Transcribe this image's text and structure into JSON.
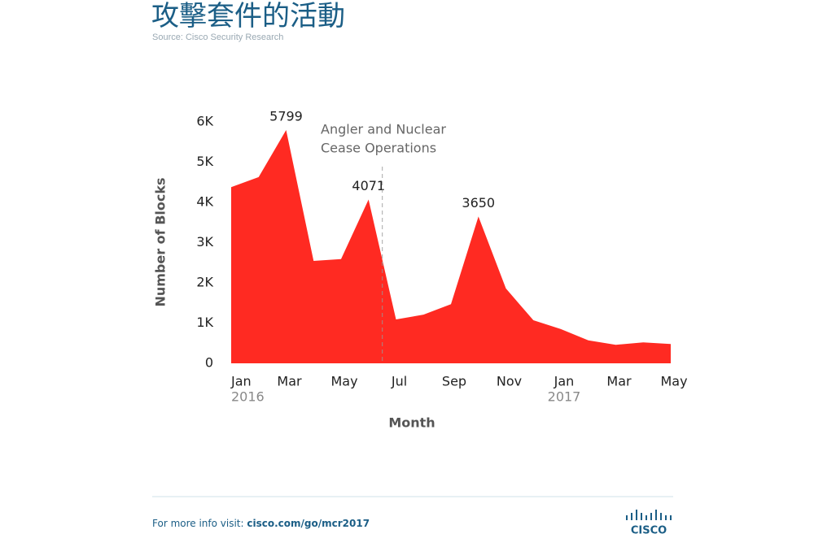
{
  "header": {
    "title": "攻擊套件的活動",
    "source": "Source: Cisco Security Research"
  },
  "chart_data": {
    "type": "area",
    "color": "#ff2a22",
    "categories": [
      "Jan",
      null,
      "Mar",
      null,
      "May",
      null,
      "Jul",
      null,
      "Sep",
      null,
      "Nov",
      null,
      "Jan",
      null,
      "Mar",
      null,
      "May"
    ],
    "year_labels": [
      "2016",
      null,
      null,
      null,
      null,
      null,
      null,
      null,
      null,
      null,
      null,
      null,
      "2017",
      null,
      null,
      null,
      null
    ],
    "values": [
      4380,
      4630,
      5799,
      2545,
      2590,
      4071,
      1090,
      1210,
      1470,
      3650,
      1860,
      1070,
      850,
      570,
      460,
      520,
      480
    ],
    "labeled_points": [
      false,
      false,
      true,
      false,
      false,
      true,
      false,
      false,
      false,
      true,
      false,
      false,
      false,
      false,
      false,
      false,
      false
    ],
    "ylim": [
      0,
      6000
    ],
    "yticks": [
      0,
      {
        "value": 1000,
        "label": "1K"
      },
      {
        "value": 2000,
        "label": "2K"
      },
      {
        "value": 3000,
        "label": "3K"
      },
      {
        "value": 4000,
        "label": "4K"
      },
      {
        "value": 5000,
        "label": "5K"
      },
      {
        "value": 6000,
        "label": "6K"
      }
    ],
    "xlabel": "Month",
    "ylabel": "Number of Blocks",
    "annotation": {
      "lines": [
        "Angler and Nuclear",
        "Cease Operations"
      ]
    }
  },
  "footer": {
    "prefix": "For more info visit: ",
    "link": "cisco.com/go/mcr2017",
    "logo": "CISCO"
  }
}
